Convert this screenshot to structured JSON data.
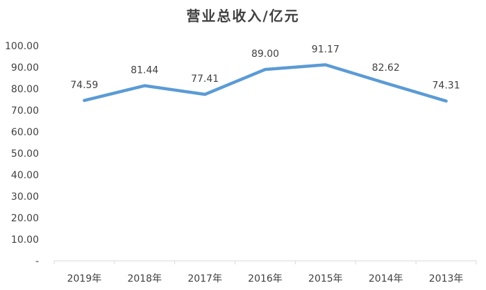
{
  "chart_data": {
    "type": "line",
    "title": "营业总收入/亿元",
    "xlabel": "",
    "ylabel": "",
    "categories": [
      "2019年",
      "2018年",
      "2017年",
      "2016年",
      "2015年",
      "2014年",
      "2013年"
    ],
    "series": [
      {
        "values": [
          74.59,
          81.44,
          77.41,
          89.0,
          91.17,
          82.62,
          74.31
        ]
      }
    ],
    "data_labels": [
      "74.59",
      "81.44",
      "77.41",
      "89.00",
      "91.17",
      "82.62",
      "74.31"
    ],
    "ylim": [
      0,
      100
    ],
    "yticks": [
      "-",
      "10.00",
      "20.00",
      "30.00",
      "40.00",
      "50.00",
      "60.00",
      "70.00",
      "80.00",
      "90.00",
      "100.00"
    ],
    "grid": false,
    "legend": "none",
    "line_color": "#5B9BD5",
    "axis_color": "#D9D9D9",
    "text_color": "#404040"
  }
}
